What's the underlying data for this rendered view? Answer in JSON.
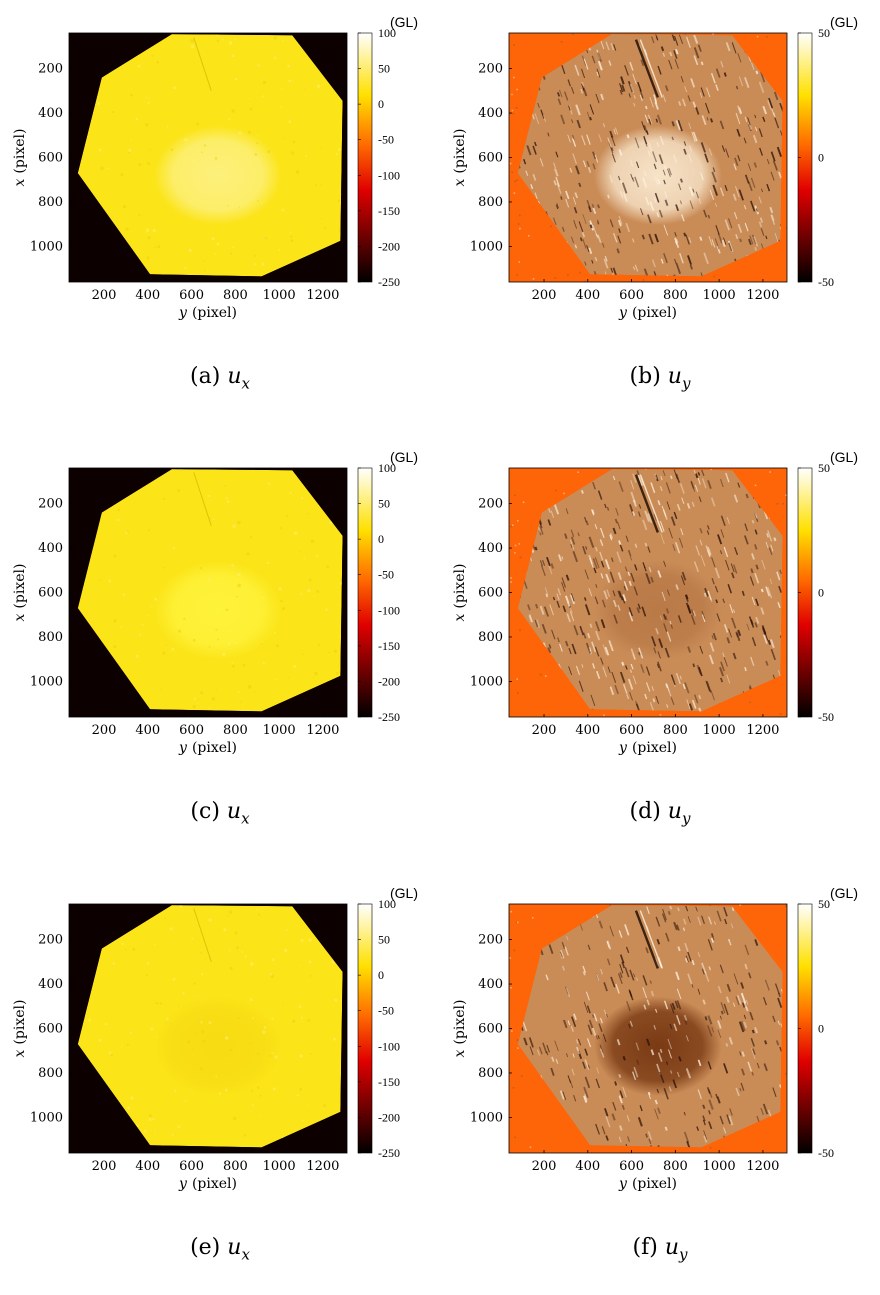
{
  "chart_data": [
    {
      "id": "a",
      "type": "heatmap",
      "caption_label": "(a)",
      "caption_var": "u",
      "caption_sub": "x",
      "xlabel_var": "y",
      "xlabel_unit": "(pixel)",
      "ylabel_var": "x",
      "ylabel_unit": "(pixel)",
      "xticks": [
        "200",
        "400",
        "600",
        "800",
        "1000",
        "1200"
      ],
      "yticks": [
        "200",
        "400",
        "600",
        "800",
        "1000"
      ],
      "colorbar_unit": "(GL)",
      "colorbar_ticks": [
        "100",
        "50",
        "0",
        "-50",
        "-100",
        "-150",
        "-200",
        "-250"
      ],
      "clim": [
        -250,
        100
      ],
      "colormap": "hot",
      "background": "#0c0000",
      "fill_color": "#fbe418",
      "ellipse_color": "#fdf07c"
    },
    {
      "id": "b",
      "type": "heatmap",
      "caption_label": "(b)",
      "caption_var": "u",
      "caption_sub": "y",
      "xlabel_var": "y",
      "xlabel_unit": "(pixel)",
      "ylabel_var": "x",
      "ylabel_unit": "(pixel)",
      "xticks": [
        "200",
        "400",
        "600",
        "800",
        "1000",
        "1200"
      ],
      "yticks": [
        "200",
        "400",
        "600",
        "800",
        "1000"
      ],
      "colorbar_unit": "(GL)",
      "colorbar_ticks": [
        "50",
        "0",
        "-50"
      ],
      "clim": [
        -50,
        50
      ],
      "colormap": "hot",
      "background": "#fe6408",
      "fill_color": "#c98c57",
      "ellipse_color": "#f7e3c8"
    },
    {
      "id": "c",
      "type": "heatmap",
      "caption_label": "(c)",
      "caption_var": "u",
      "caption_sub": "x",
      "xlabel_var": "y",
      "xlabel_unit": "(pixel)",
      "ylabel_var": "x",
      "ylabel_unit": "(pixel)",
      "xticks": [
        "200",
        "400",
        "600",
        "800",
        "1000",
        "1200"
      ],
      "yticks": [
        "200",
        "400",
        "600",
        "800",
        "1000"
      ],
      "colorbar_unit": "(GL)",
      "colorbar_ticks": [
        "100",
        "50",
        "0",
        "-50",
        "-100",
        "-150",
        "-200",
        "-250"
      ],
      "clim": [
        -250,
        100
      ],
      "colormap": "hot",
      "background": "#0c0000",
      "fill_color": "#fbe418",
      "ellipse_color": "#fef23a"
    },
    {
      "id": "d",
      "type": "heatmap",
      "caption_label": "(d)",
      "caption_var": "u",
      "caption_sub": "y",
      "xlabel_var": "y",
      "xlabel_unit": "(pixel)",
      "ylabel_var": "x",
      "ylabel_unit": "(pixel)",
      "xticks": [
        "200",
        "400",
        "600",
        "800",
        "1000",
        "1200"
      ],
      "yticks": [
        "200",
        "400",
        "600",
        "800",
        "1000"
      ],
      "colorbar_unit": "(GL)",
      "colorbar_ticks": [
        "50",
        "0",
        "-50"
      ],
      "clim": [
        -50,
        50
      ],
      "colormap": "hot",
      "background": "#fe6408",
      "fill_color": "#c98c57",
      "ellipse_color": "#b97a48"
    },
    {
      "id": "e",
      "type": "heatmap",
      "caption_label": "(e)",
      "caption_var": "u",
      "caption_sub": "x",
      "xlabel_var": "y",
      "xlabel_unit": "(pixel)",
      "ylabel_var": "x",
      "ylabel_unit": "(pixel)",
      "xticks": [
        "200",
        "400",
        "600",
        "800",
        "1000",
        "1200"
      ],
      "yticks": [
        "200",
        "400",
        "600",
        "800",
        "1000"
      ],
      "colorbar_unit": "(GL)",
      "colorbar_ticks": [
        "100",
        "50",
        "0",
        "-50",
        "-100",
        "-150",
        "-200",
        "-250"
      ],
      "clim": [
        -250,
        100
      ],
      "colormap": "hot",
      "background": "#0c0000",
      "fill_color": "#fbe418",
      "ellipse_color": "#f7dc14"
    },
    {
      "id": "f",
      "type": "heatmap",
      "caption_label": "(f)",
      "caption_var": "u",
      "caption_sub": "y",
      "xlabel_var": "y",
      "xlabel_unit": "(pixel)",
      "ylabel_var": "x",
      "ylabel_unit": "(pixel)",
      "xticks": [
        "200",
        "400",
        "600",
        "800",
        "1000",
        "1200"
      ],
      "yticks": [
        "200",
        "400",
        "600",
        "800",
        "1000"
      ],
      "colorbar_unit": "(GL)",
      "colorbar_ticks": [
        "50",
        "0",
        "-50"
      ],
      "clim": [
        -50,
        50
      ],
      "colormap": "hot",
      "background": "#fe6408",
      "fill_color": "#c98c57",
      "ellipse_color": "#7a3a14"
    }
  ]
}
